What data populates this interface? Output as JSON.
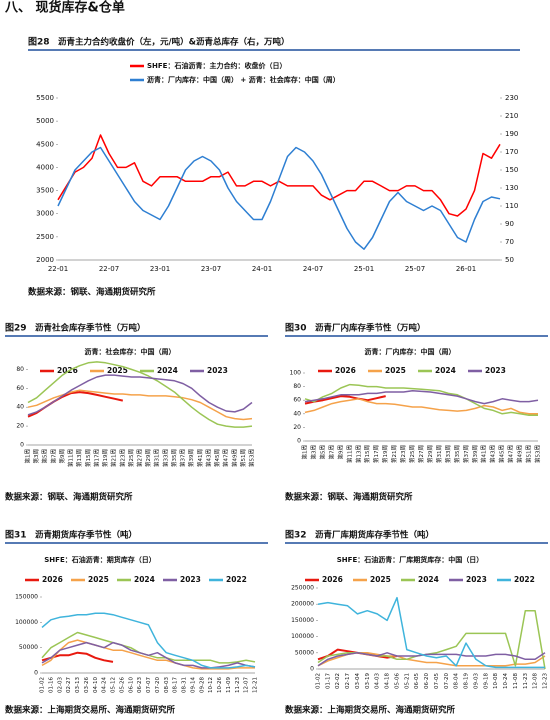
{
  "header": {
    "section": "八、 现货库存&仓单"
  },
  "chart_data": [
    {
      "type": "line",
      "figure": "图28",
      "title": "沥青主力合约收盘价（左，元/吨）&沥青总库存（右，万吨）",
      "categories": [
        "22-01",
        null,
        null,
        null,
        null,
        null,
        "22-07",
        null,
        null,
        null,
        null,
        null,
        "23-01",
        null,
        null,
        null,
        null,
        null,
        "23-07",
        null,
        null,
        null,
        null,
        null,
        "24-01",
        null,
        null,
        null,
        null,
        null,
        "24-07",
        null,
        null,
        null,
        null,
        null,
        "25-01",
        null,
        null,
        null,
        null,
        null,
        "25-07",
        null,
        null,
        null,
        null,
        null,
        "26-01",
        null,
        null,
        null,
        null
      ],
      "series": [
        {
          "name": "SHFE：石油沥青：主力合约：收盘价（日）",
          "color": "#ff0000",
          "values": [
            3300,
            3600,
            3900,
            4000,
            4200,
            4700,
            4300,
            4000,
            4000,
            4100,
            3700,
            3600,
            3800,
            3800,
            3800,
            3700,
            3700,
            3700,
            3800,
            3800,
            3900,
            3600,
            3600,
            3700,
            3700,
            3600,
            3700,
            3600,
            3600,
            3600,
            3600,
            3400,
            3300,
            3400,
            3500,
            3500,
            3700,
            3700,
            3600,
            3500,
            3500,
            3600,
            3600,
            3500,
            3500,
            3300,
            3000,
            2950,
            3100,
            3500,
            4300,
            4200,
            4500
          ]
        },
        {
          "name": "沥青：厂内库存：中国（周） + 沥青：社会库存：中国（周）",
          "color": "#2e7fd2",
          "axis": "y2",
          "values": [
            110,
            130,
            150,
            160,
            170,
            175,
            160,
            145,
            130,
            115,
            105,
            100,
            95,
            110,
            130,
            150,
            160,
            165,
            160,
            150,
            130,
            115,
            105,
            95,
            95,
            115,
            140,
            165,
            175,
            170,
            160,
            145,
            125,
            105,
            85,
            70,
            62,
            75,
            95,
            115,
            125,
            115,
            110,
            105,
            110,
            105,
            90,
            75,
            70,
            95,
            115,
            120,
            118
          ]
        }
      ],
      "ylim": [
        2000,
        5500
      ],
      "yticks": [
        2000,
        2500,
        3000,
        3500,
        4000,
        4500,
        5000,
        5500
      ],
      "y2lim": [
        50,
        230
      ],
      "y2ticks": [
        50,
        70,
        90,
        110,
        130,
        150,
        170,
        190,
        210,
        230
      ],
      "source": "数据来源：钢联、海通期货研究所"
    },
    {
      "type": "line",
      "figure": "图29",
      "title": "沥青社会库存季节性（万吨）",
      "legend_title": "沥青：社会库存：中国（周）",
      "categories": [
        "第1周",
        "第3周",
        "第5周",
        "第7周",
        "第9周",
        "第11周",
        "第13周",
        "第15周",
        "第17周",
        "第19周",
        "第21周",
        "第23周",
        "第25周",
        "第27周",
        "第29周",
        "第31周",
        "第33周",
        "第35周",
        "第37周",
        "第39周",
        "第41周",
        "第43周",
        "第45周",
        "第47周",
        "第49周",
        "第51周",
        "第53周"
      ],
      "series": [
        {
          "name": "2026",
          "color": "#e8190f",
          "values": [
            30,
            34,
            40,
            46,
            51,
            55,
            56,
            55,
            53,
            51,
            49,
            47,
            null,
            null,
            null,
            null,
            null,
            null,
            null,
            null,
            null,
            null,
            null,
            null,
            null,
            null,
            null
          ]
        },
        {
          "name": "2025",
          "color": "#f5a24a",
          "values": [
            40,
            42,
            46,
            50,
            53,
            56,
            58,
            57,
            56,
            55,
            54,
            54,
            53,
            53,
            52,
            52,
            52,
            51,
            50,
            48,
            45,
            40,
            35,
            30,
            28,
            27,
            28
          ]
        },
        {
          "name": "2024",
          "color": "#9bc555",
          "values": [
            45,
            50,
            58,
            66,
            74,
            80,
            84,
            87,
            88,
            87,
            85,
            83,
            80,
            77,
            73,
            68,
            62,
            56,
            48,
            40,
            33,
            27,
            22,
            20,
            19,
            19,
            20
          ]
        },
        {
          "name": "2023",
          "color": "#7f5fa3",
          "values": [
            32,
            35,
            40,
            46,
            52,
            58,
            63,
            68,
            72,
            74,
            74,
            73,
            72,
            72,
            71,
            70,
            69,
            68,
            65,
            60,
            52,
            45,
            40,
            36,
            35,
            38,
            45
          ]
        }
      ],
      "ylim": [
        0,
        90
      ],
      "yticks": [
        0,
        20,
        40,
        60,
        80
      ],
      "source": "数据来源：钢联、海通期货研究所"
    },
    {
      "type": "line",
      "figure": "图30",
      "title": "沥青厂内库存季节性（万吨）",
      "legend_title": "沥青：厂内库存：中国（周）",
      "categories": [
        "第1周",
        "第3周",
        "第5周",
        "第7周",
        "第9周",
        "第11周",
        "第13周",
        "第15周",
        "第17周",
        "第19周",
        "第21周",
        "第23周",
        "第25周",
        "第27周",
        "第29周",
        "第31周",
        "第33周",
        "第35周",
        "第37周",
        "第39周",
        "第41周",
        "第43周",
        "第45周",
        "第47周",
        "第49周",
        "第51周",
        "第53周"
      ],
      "series": [
        {
          "name": "2026",
          "color": "#e8190f",
          "values": [
            55,
            58,
            60,
            63,
            66,
            65,
            62,
            60,
            63,
            66,
            null,
            null,
            null,
            null,
            null,
            null,
            null,
            null,
            null,
            null,
            null,
            null,
            null,
            null,
            null,
            null,
            null
          ]
        },
        {
          "name": "2025",
          "color": "#f5a24a",
          "values": [
            42,
            45,
            50,
            55,
            58,
            60,
            62,
            58,
            55,
            55,
            54,
            52,
            50,
            50,
            48,
            46,
            45,
            44,
            45,
            48,
            52,
            50,
            45,
            48,
            42,
            40,
            40
          ]
        },
        {
          "name": "2024",
          "color": "#9bc555",
          "values": [
            62,
            58,
            65,
            70,
            78,
            83,
            82,
            80,
            80,
            78,
            78,
            78,
            77,
            76,
            75,
            74,
            70,
            68,
            62,
            55,
            48,
            45,
            40,
            42,
            40,
            38,
            38
          ]
        },
        {
          "name": "2023",
          "color": "#7f5fa3",
          "values": [
            58,
            60,
            62,
            65,
            68,
            68,
            68,
            70,
            70,
            72,
            72,
            72,
            74,
            73,
            72,
            70,
            68,
            66,
            62,
            58,
            55,
            58,
            62,
            60,
            58,
            58,
            60
          ]
        }
      ],
      "ylim": [
        0,
        100
      ],
      "yticks": [
        0,
        20,
        40,
        60,
        80,
        100
      ],
      "source": "数据来源：钢联、海通期货研究所"
    },
    {
      "type": "line",
      "figure": "图31",
      "title": "沥青期货库存季节性（吨）",
      "legend_title": "SHFE：石油沥青：期货库存（日）",
      "categories": [
        "01-02",
        "01-16",
        "02-03",
        "02-27",
        "03-13",
        "03-26",
        "04-10",
        "04-24",
        "05-12",
        "05-26",
        "06-10",
        "06-23",
        "07-07",
        "07-20",
        "08-03",
        "08-17",
        "08-31",
        "09-14",
        "09-28",
        "10-12",
        "10-26",
        "11-09",
        "11-23",
        "12-07",
        "12-21"
      ],
      "series": [
        {
          "name": "2026",
          "color": "#e8190f",
          "values": [
            25000,
            30000,
            35000,
            35000,
            40000,
            38000,
            30000,
            25000,
            22000,
            null,
            null,
            null,
            null,
            null,
            null,
            null,
            null,
            null,
            null,
            null,
            null,
            null,
            null,
            null,
            null
          ]
        },
        {
          "name": "2025",
          "color": "#f5a24a",
          "values": [
            15000,
            25000,
            45000,
            60000,
            65000,
            60000,
            55000,
            50000,
            45000,
            45000,
            40000,
            35000,
            30000,
            25000,
            25000,
            20000,
            15000,
            10000,
            8000,
            8000,
            8000,
            8000,
            10000,
            10000,
            10000
          ]
        },
        {
          "name": "2024",
          "color": "#9bc555",
          "values": [
            30000,
            50000,
            60000,
            70000,
            80000,
            75000,
            70000,
            65000,
            60000,
            55000,
            50000,
            40000,
            35000,
            30000,
            30000,
            25000,
            25000,
            25000,
            25000,
            25000,
            20000,
            20000,
            22000,
            25000,
            22000
          ]
        },
        {
          "name": "2023",
          "color": "#7f5fa3",
          "values": [
            20000,
            30000,
            45000,
            50000,
            55000,
            60000,
            55000,
            50000,
            60000,
            55000,
            45000,
            40000,
            35000,
            40000,
            30000,
            20000,
            15000,
            15000,
            10000,
            10000,
            12000,
            15000,
            20000,
            15000,
            12000
          ]
        },
        {
          "name": "2022",
          "color": "#3fb4dc",
          "values": [
            90000,
            105000,
            110000,
            112000,
            115000,
            115000,
            118000,
            118000,
            115000,
            110000,
            105000,
            100000,
            95000,
            60000,
            40000,
            35000,
            30000,
            25000,
            15000,
            10000,
            10000,
            10000,
            12000,
            15000,
            12000
          ]
        }
      ],
      "ylim": [
        0,
        150000
      ],
      "yticks": [
        0,
        50000,
        100000,
        150000
      ],
      "source": "数据来源：上海期货交易所、海通期货研究所"
    },
    {
      "type": "line",
      "figure": "图32",
      "title": "沥青厂库期货库存季节性（吨）",
      "legend_title": "SHFE：石油沥青：厂库期货库存：中国（日）",
      "categories": [
        "01-02",
        "01-17",
        "02-02",
        "02-17",
        "03-04",
        "03-19",
        "04-03",
        "04-18",
        "05-06",
        "05-21",
        "06-05",
        "06-20",
        "07-05",
        "07-20",
        "08-04",
        "08-19",
        "09-03",
        "09-18",
        "10-08",
        "10-24",
        "11-08",
        "11-23",
        "12-08",
        "12-23"
      ],
      "series": [
        {
          "name": "2026",
          "color": "#e8190f",
          "values": [
            30000,
            40000,
            60000,
            55000,
            50000,
            45000,
            40000,
            35000,
            40000,
            null,
            null,
            null,
            null,
            null,
            null,
            null,
            null,
            null,
            null,
            null,
            null,
            null,
            null,
            null
          ]
        },
        {
          "name": "2025",
          "color": "#f5a24a",
          "values": [
            10000,
            25000,
            35000,
            45000,
            50000,
            50000,
            45000,
            40000,
            40000,
            30000,
            25000,
            20000,
            20000,
            15000,
            10000,
            10000,
            10000,
            10000,
            10000,
            10000,
            15000,
            15000,
            20000,
            40000
          ]
        },
        {
          "name": "2024",
          "color": "#9bc555",
          "values": [
            20000,
            40000,
            45000,
            50000,
            50000,
            45000,
            40000,
            40000,
            30000,
            30000,
            40000,
            45000,
            50000,
            60000,
            70000,
            110000,
            110000,
            110000,
            110000,
            110000,
            10000,
            180000,
            180000,
            0
          ]
        },
        {
          "name": "2023",
          "color": "#7f5fa3",
          "values": [
            10000,
            30000,
            40000,
            45000,
            50000,
            45000,
            40000,
            50000,
            40000,
            40000,
            40000,
            45000,
            45000,
            45000,
            45000,
            40000,
            40000,
            40000,
            45000,
            45000,
            40000,
            30000,
            30000,
            50000
          ]
        },
        {
          "name": "2022",
          "color": "#3fb4dc",
          "values": [
            200000,
            205000,
            200000,
            195000,
            170000,
            180000,
            170000,
            150000,
            220000,
            60000,
            50000,
            40000,
            35000,
            40000,
            10000,
            80000,
            30000,
            10000,
            5000,
            5000,
            5000,
            5000,
            5000,
            5000
          ]
        }
      ],
      "ylim": [
        0,
        250000
      ],
      "yticks": [
        0,
        50000,
        100000,
        150000,
        200000,
        250000
      ],
      "source": "数据来源：上海期货交易所、海通期货研究所"
    }
  ]
}
